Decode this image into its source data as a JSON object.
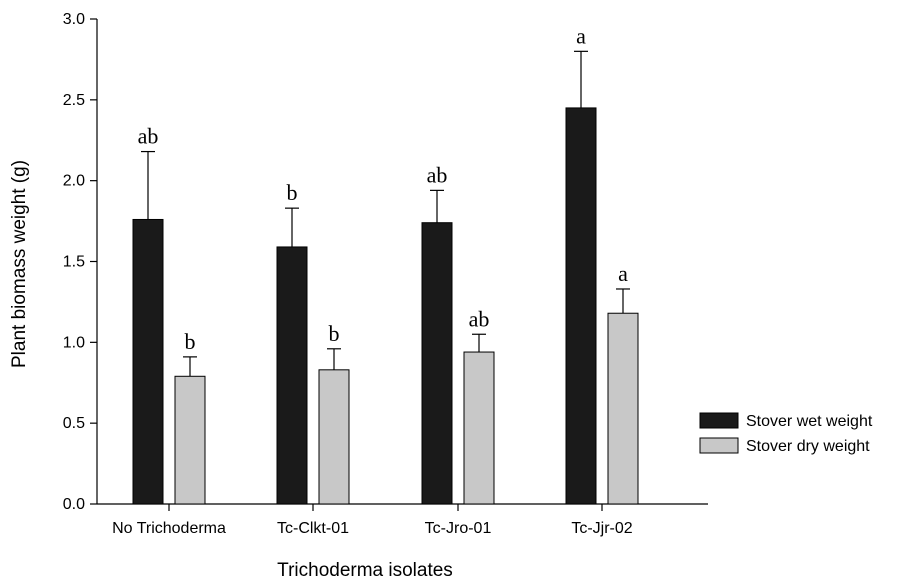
{
  "chart_data": {
    "type": "bar",
    "title": "",
    "xlabel": "Trichoderma isolates",
    "ylabel": "Plant biomass weight (g)",
    "ylim": [
      0,
      3.0
    ],
    "yticks": [
      "0.0",
      "0.5",
      "1.0",
      "1.5",
      "2.0",
      "2.5",
      "3.0"
    ],
    "categories": [
      "No Trichoderma",
      "Tc-Clkt-01",
      "Tc-Jro-01",
      "Tc-Jjr-02"
    ],
    "grid": false,
    "legend_position": "right",
    "series": [
      {
        "name": "Stover wet weight",
        "color": "#1a1a1a",
        "values": [
          1.76,
          1.59,
          1.74,
          2.45
        ],
        "error": [
          0.42,
          0.24,
          0.2,
          0.35
        ],
        "labels": [
          "ab",
          "b",
          "ab",
          "a"
        ]
      },
      {
        "name": "Stover dry weight",
        "color": "#c8c8c8",
        "values": [
          0.79,
          0.83,
          0.94,
          1.18
        ],
        "error": [
          0.12,
          0.13,
          0.11,
          0.15
        ],
        "labels": [
          "b",
          "b",
          "ab",
          "a"
        ]
      }
    ]
  }
}
